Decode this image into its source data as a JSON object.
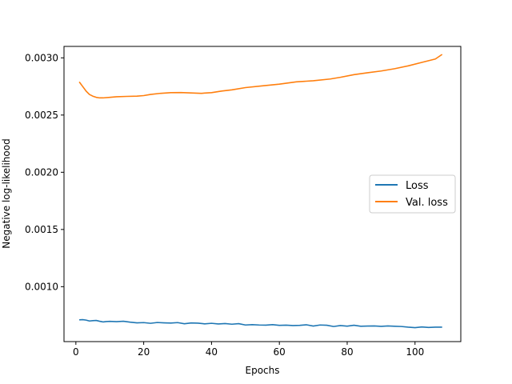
{
  "chart_data": {
    "type": "line",
    "title": "",
    "xlabel": "Epochs",
    "ylabel": "Negative log-likelihood",
    "xlim": [
      -3.5,
      113.5
    ],
    "ylim": [
      0.00052,
      0.0031
    ],
    "xticks": [
      0,
      20,
      40,
      60,
      80,
      100
    ],
    "xtick_labels": [
      "0",
      "20",
      "40",
      "60",
      "80",
      "100"
    ],
    "yticks": [
      0.001,
      0.0015,
      0.002,
      0.0025,
      0.003
    ],
    "ytick_labels": [
      "0.0010",
      "0.0015",
      "0.0020",
      "0.0025",
      "0.0030"
    ],
    "grid": false,
    "legend_position": "center-right",
    "series": [
      {
        "name": "Loss",
        "color": "#1f77b4",
        "points": [
          [
            1,
            0.00071
          ],
          [
            2,
            0.000712
          ],
          [
            3,
            0.000708
          ],
          [
            4,
            0.0007
          ],
          [
            5,
            0.000703
          ],
          [
            6,
            0.000705
          ],
          [
            7,
            0.000698
          ],
          [
            8,
            0.000692
          ],
          [
            9,
            0.000695
          ],
          [
            10,
            0.000697
          ],
          [
            12,
            0.000694
          ],
          [
            14,
            0.000698
          ],
          [
            16,
            0.00069
          ],
          [
            18,
            0.000684
          ],
          [
            20,
            0.000686
          ],
          [
            22,
            0.00068
          ],
          [
            24,
            0.000687
          ],
          [
            26,
            0.000684
          ],
          [
            28,
            0.000682
          ],
          [
            30,
            0.000686
          ],
          [
            32,
            0.000676
          ],
          [
            34,
            0.000683
          ],
          [
            36,
            0.000681
          ],
          [
            38,
            0.000675
          ],
          [
            40,
            0.00068
          ],
          [
            42,
            0.000674
          ],
          [
            44,
            0.000678
          ],
          [
            46,
            0.000672
          ],
          [
            48,
            0.000677
          ],
          [
            50,
            0.000665
          ],
          [
            52,
            0.000668
          ],
          [
            54,
            0.000665
          ],
          [
            56,
            0.000664
          ],
          [
            58,
            0.000668
          ],
          [
            60,
            0.000662
          ],
          [
            62,
            0.000664
          ],
          [
            64,
            0.00066
          ],
          [
            66,
            0.000662
          ],
          [
            68,
            0.000667
          ],
          [
            70,
            0.000656
          ],
          [
            72,
            0.000665
          ],
          [
            74,
            0.000663
          ],
          [
            76,
            0.000652
          ],
          [
            78,
            0.00066
          ],
          [
            80,
            0.000655
          ],
          [
            82,
            0.000663
          ],
          [
            84,
            0.000654
          ],
          [
            86,
            0.000656
          ],
          [
            88,
            0.000657
          ],
          [
            90,
            0.000653
          ],
          [
            92,
            0.000657
          ],
          [
            94,
            0.000654
          ],
          [
            96,
            0.000652
          ],
          [
            98,
            0.000646
          ],
          [
            100,
            0.000642
          ],
          [
            102,
            0.000648
          ],
          [
            104,
            0.000644
          ],
          [
            106,
            0.000646
          ],
          [
            108,
            0.000646
          ]
        ]
      },
      {
        "name": "Val. loss",
        "color": "#ff7f0e",
        "points": [
          [
            1,
            0.00279
          ],
          [
            2,
            0.00275
          ],
          [
            3,
            0.00271
          ],
          [
            4,
            0.00268
          ],
          [
            5,
            0.002665
          ],
          [
            6,
            0.002655
          ],
          [
            7,
            0.00265
          ],
          [
            8,
            0.00265
          ],
          [
            10,
            0.002655
          ],
          [
            12,
            0.00266
          ],
          [
            15,
            0.002663
          ],
          [
            18,
            0.002665
          ],
          [
            20,
            0.00267
          ],
          [
            22,
            0.00268
          ],
          [
            25,
            0.00269
          ],
          [
            28,
            0.002696
          ],
          [
            31,
            0.002697
          ],
          [
            34,
            0.002693
          ],
          [
            37,
            0.00269
          ],
          [
            40,
            0.002696
          ],
          [
            43,
            0.00271
          ],
          [
            46,
            0.00272
          ],
          [
            50,
            0.00274
          ],
          [
            55,
            0.002755
          ],
          [
            60,
            0.00277
          ],
          [
            65,
            0.00279
          ],
          [
            70,
            0.0028
          ],
          [
            75,
            0.002815
          ],
          [
            78,
            0.00283
          ],
          [
            82,
            0.002853
          ],
          [
            86,
            0.00287
          ],
          [
            90,
            0.002885
          ],
          [
            94,
            0.002905
          ],
          [
            98,
            0.00293
          ],
          [
            102,
            0.00296
          ],
          [
            106,
            0.00299
          ],
          [
            108,
            0.00303
          ]
        ]
      }
    ]
  }
}
